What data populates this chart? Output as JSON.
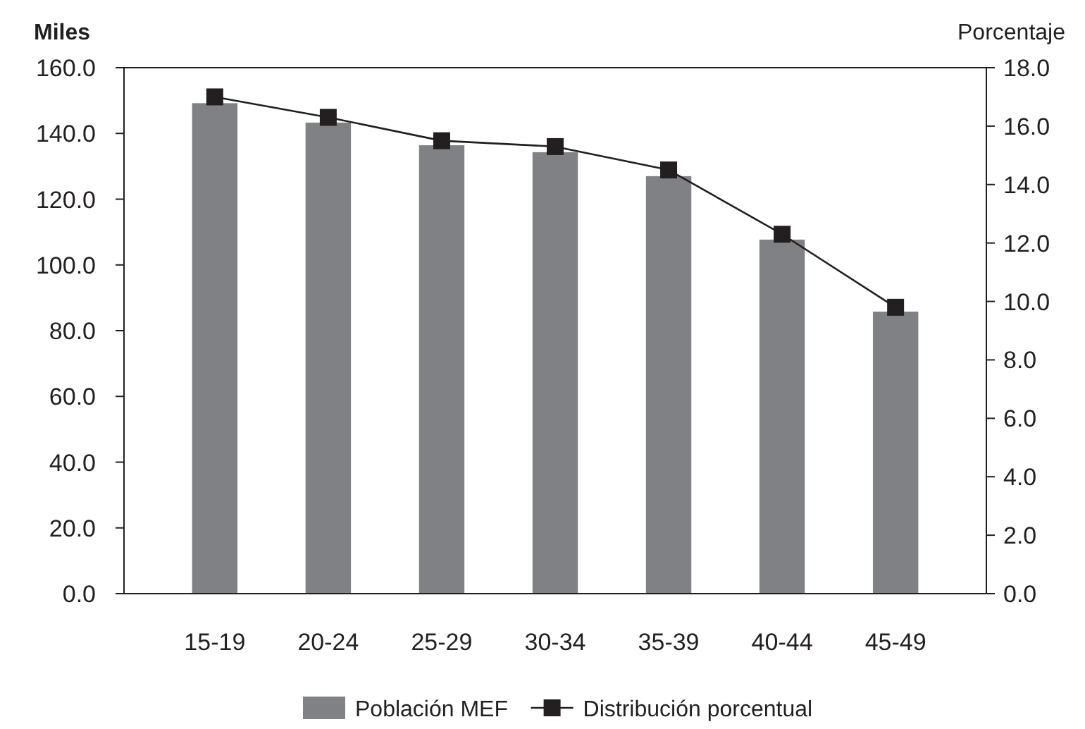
{
  "chart_data": {
    "type": "bar",
    "ylabel": "Miles",
    "y2label": "Porcentaje",
    "categories": [
      "15-19",
      "20-24",
      "25-29",
      "30-34",
      "35-39",
      "40-44",
      "45-49"
    ],
    "series": [
      {
        "name": "Población MEF",
        "color": "#808184",
        "values": [
          149.2,
          143.3,
          136.4,
          134.3,
          127.0,
          107.7,
          85.8
        ]
      },
      {
        "name": "Distribución porcentual",
        "type": "line",
        "axis": "y2",
        "color": "#231f20",
        "marker": "square",
        "values": [
          17.0,
          16.3,
          15.5,
          15.3,
          14.5,
          12.3,
          9.8
        ]
      }
    ],
    "ylim": [
      0,
      160
    ],
    "yticks": [
      {
        "value": 0,
        "label": "0.0"
      },
      {
        "value": 20,
        "label": "20.0"
      },
      {
        "value": 40,
        "label": "40.0"
      },
      {
        "value": 60,
        "label": "60.0"
      },
      {
        "value": 80,
        "label": "80.0"
      },
      {
        "value": 100,
        "label": "100.0"
      },
      {
        "value": 120,
        "label": "120.0"
      },
      {
        "value": 140,
        "label": "140.0"
      },
      {
        "value": 160,
        "label": "160.0"
      }
    ],
    "y2lim": [
      0,
      18
    ],
    "y2ticks": [
      {
        "value": 0,
        "label": "0.0"
      },
      {
        "value": 2,
        "label": "2.0"
      },
      {
        "value": 4,
        "label": "4.0"
      },
      {
        "value": 6,
        "label": "6.0"
      },
      {
        "value": 8,
        "label": "8.0"
      },
      {
        "value": 10,
        "label": "10.0"
      },
      {
        "value": 12,
        "label": "12.0"
      },
      {
        "value": 14,
        "label": "14.0"
      },
      {
        "value": 16,
        "label": "16.0"
      },
      {
        "value": 18,
        "label": "18.0"
      }
    ],
    "legend": "bottom"
  }
}
